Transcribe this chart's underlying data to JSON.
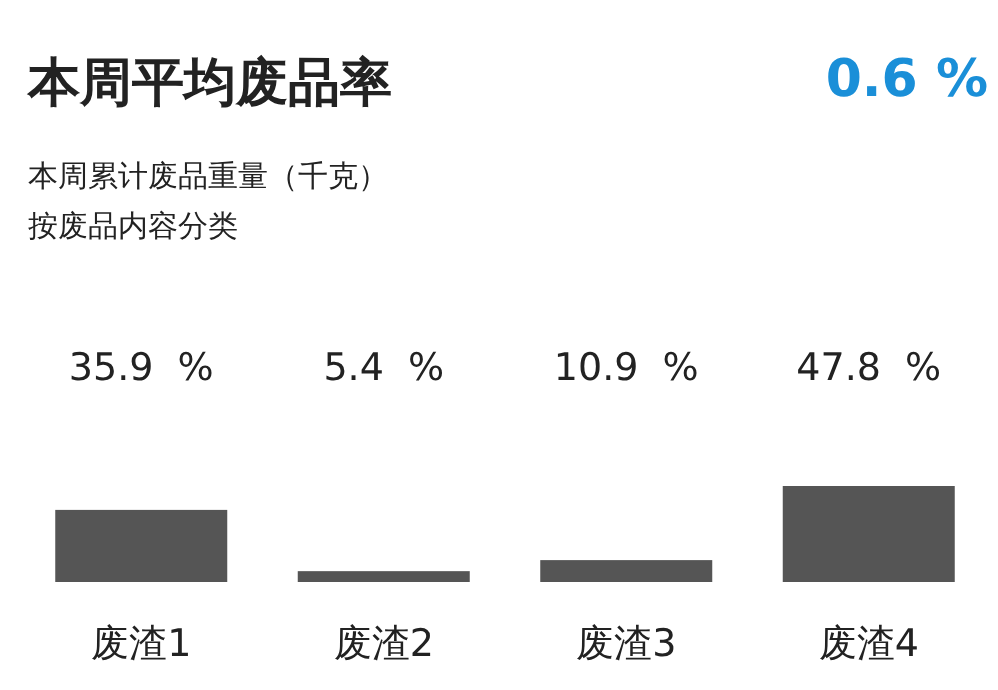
{
  "chart_data": {
    "type": "bar",
    "title": "本周平均废品率",
    "subtitle": "本周累计废品重量（千克）",
    "annotations": [
      "按废品内容分类",
      "0.6 %"
    ],
    "categories": [
      "废渣1",
      "废渣2",
      "废渣3",
      "废渣4"
    ],
    "values": [
      35.9,
      5.4,
      10.9,
      47.8
    ],
    "value_labels": [
      "35.9  %",
      "5.4  %",
      "10.9  %",
      "47.8  %"
    ],
    "color": "#555555"
  }
}
